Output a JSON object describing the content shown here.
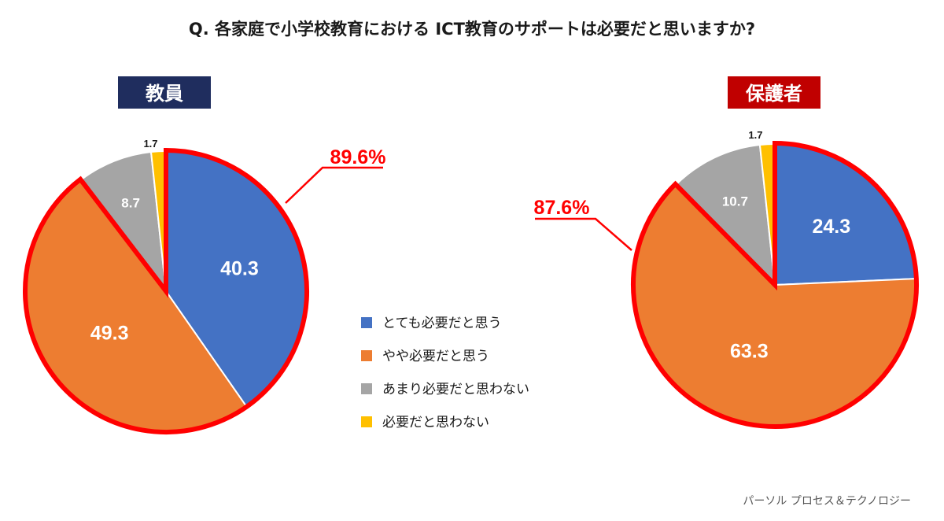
{
  "title": "Q. 各家庭で小学校教育における ICT教育のサポートは必要だと思いますか?",
  "source": "パーソル プロセス＆テクノロジー",
  "colors": {
    "blue": "#4472C4",
    "orange": "#ED7D31",
    "gray": "#A5A5A5",
    "yellow": "#FFC000",
    "highlight": "#FF0000",
    "teacher_label_bg": "#1F2D5E",
    "parent_label_bg": "#C00000",
    "text": "#1A1A1A"
  },
  "chart_data": [
    {
      "type": "pie",
      "group": "教員",
      "categories": [
        "とても必要だと思う",
        "やや必要だと思う",
        "あまり必要だと思わない",
        "必要だと思わない"
      ],
      "values": [
        40.3,
        49.3,
        8.7,
        1.7
      ],
      "labels": [
        "40.3",
        "49.3",
        "8.7",
        "1.7"
      ],
      "highlight_total": "89.6%",
      "start_angle": "12 o'clock",
      "direction": "clockwise"
    },
    {
      "type": "pie",
      "group": "保護者",
      "categories": [
        "とても必要だと思う",
        "やや必要だと思う",
        "あまり必要だと思わない",
        "必要だと思わない"
      ],
      "values": [
        24.3,
        63.3,
        10.7,
        1.7
      ],
      "labels": [
        "24.3",
        "63.3",
        "10.7",
        "1.7"
      ],
      "highlight_total": "87.6%",
      "start_angle": "12 o'clock",
      "direction": "clockwise"
    }
  ],
  "legend": {
    "items": [
      {
        "label": "とても必要だと思う",
        "color": "#4472C4"
      },
      {
        "label": "やや必要だと思う",
        "color": "#ED7D31"
      },
      {
        "label": "あまり必要だと思わない",
        "color": "#A5A5A5"
      },
      {
        "label": "必要だと思わない",
        "color": "#FFC000"
      }
    ]
  }
}
